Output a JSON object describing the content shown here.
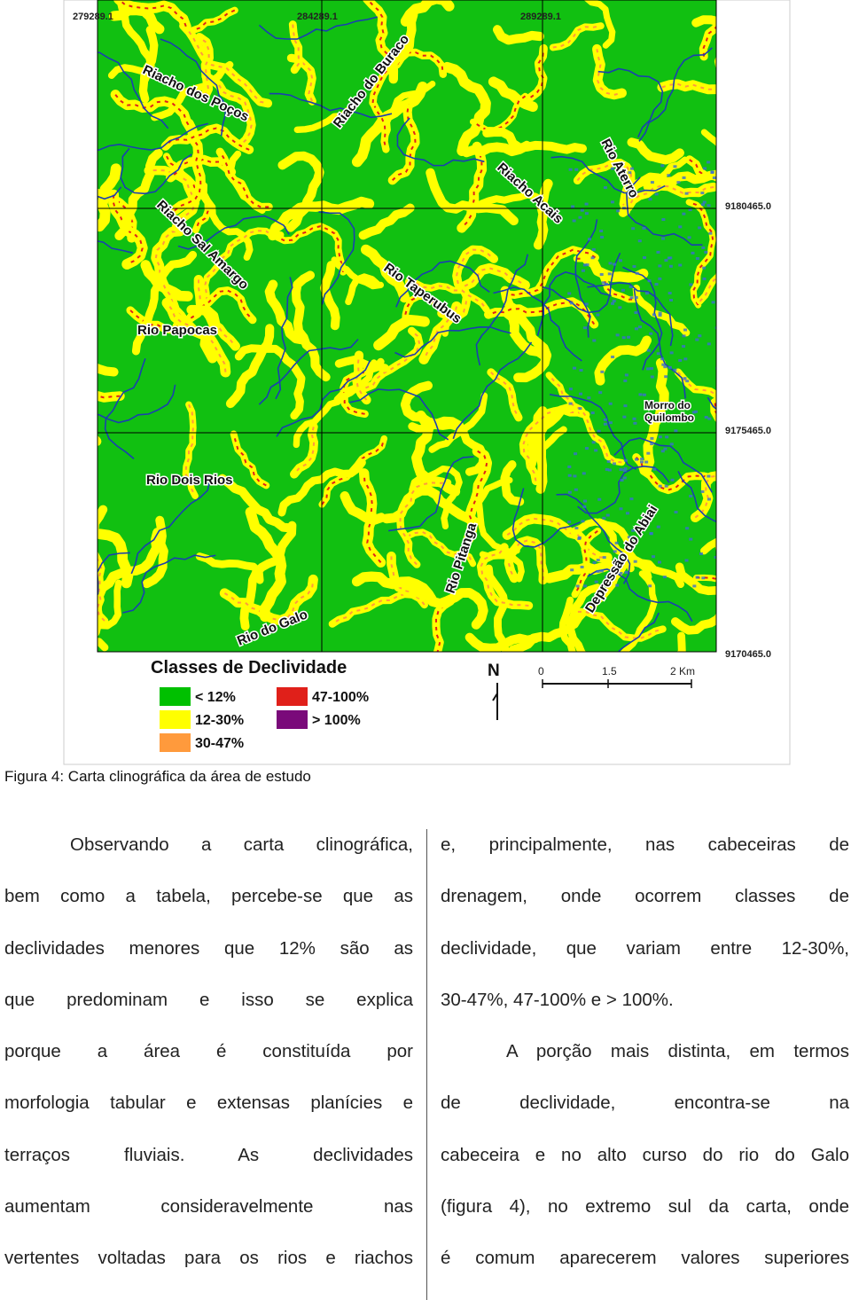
{
  "figure": {
    "coordinates": {
      "top": [
        "279289.1",
        "284289.1",
        "289289.1"
      ],
      "right": [
        "9180465.0",
        "9175465.0",
        "9170465.0"
      ]
    },
    "map_labels": [
      "Riacho dos Poços",
      "Riacho do Buraco",
      "Rio Aterro",
      "Riacho Acais",
      "Riacho Sal Amargo",
      "Rio Taperubus",
      "Rio Papocas",
      "Morro do",
      "Quilombo",
      "Rio Dois Rios",
      "Rio Pitanga",
      "Depressão do Abiai",
      "Rio do Galo"
    ],
    "legend": {
      "title": "Classes de Declividade",
      "items": [
        {
          "label": "< 12%",
          "color": "#00c000"
        },
        {
          "label": "12-30%",
          "color": "#ffff00"
        },
        {
          "label": "30-47%",
          "color": "#ff9a3c"
        },
        {
          "label": "47-100%",
          "color": "#e0201a"
        },
        {
          "label": "> 100%",
          "color": "#7a0a7a"
        }
      ]
    },
    "north": "N",
    "scale": [
      "0",
      "1.5",
      "2 Km"
    ],
    "caption": "Figura 4: Carta clinográfica da área de estudo"
  },
  "body": {
    "columns": [
      [
        [
          "Observando a carta clinográfica,",
          "bem como a tabela, percebe-se que as",
          "declividades menores que 12% são as",
          "que predominam e isso se explica",
          "porque a área é constituída por",
          "morfologia tabular e extensas planícies e",
          "terraços fluviais. As declividades",
          "aumentam consideravelmente nas",
          "vertentes voltadas para os rios e riachos"
        ]
      ],
      [
        [
          "e, principalmente, nas cabeceiras de",
          "drenagem, onde ocorrem classes de",
          "declividade, que variam entre 12-30%,",
          "30-47%, 47-100% e > 100%."
        ],
        [
          "A porção mais distinta, em termos",
          "de declividade, encontra-se na",
          "cabeceira e no alto curso do rio do Galo",
          "(figura 4), no extremo sul da carta, onde",
          "é comum aparecerem valores superiores"
        ]
      ]
    ]
  }
}
